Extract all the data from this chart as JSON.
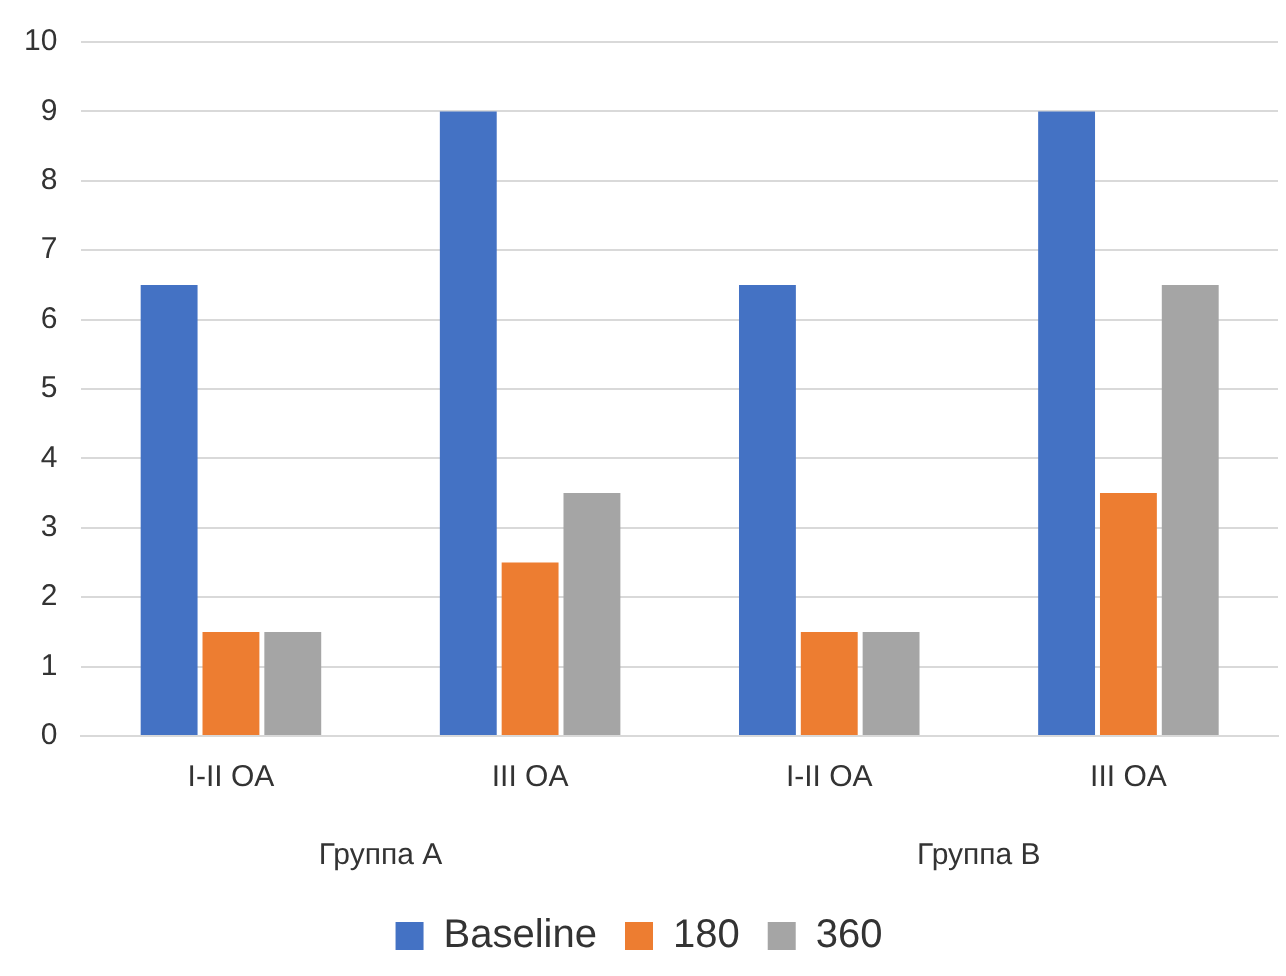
{
  "chart_data": {
    "type": "bar",
    "categories": [
      "I-II OA",
      "III OA",
      "I-II OA",
      "III OA"
    ],
    "series": [
      {
        "name": "Baseline",
        "color": "#4472c4",
        "values": [
          6.5,
          9,
          6.5,
          9
        ]
      },
      {
        "name": "180",
        "color": "#ed7d31",
        "values": [
          1.5,
          2.5,
          1.5,
          3.5
        ]
      },
      {
        "name": "360",
        "color": "#a5a5a5",
        "values": [
          1.5,
          3.5,
          1.5,
          6.5
        ]
      }
    ],
    "ylim": [
      0,
      10
    ],
    "yticks": [
      0,
      1,
      2,
      3,
      4,
      5,
      6,
      7,
      8,
      9,
      10
    ],
    "grid": "y",
    "legend": "bottom",
    "annotations": [
      "Группа А",
      "Группа В"
    ]
  }
}
